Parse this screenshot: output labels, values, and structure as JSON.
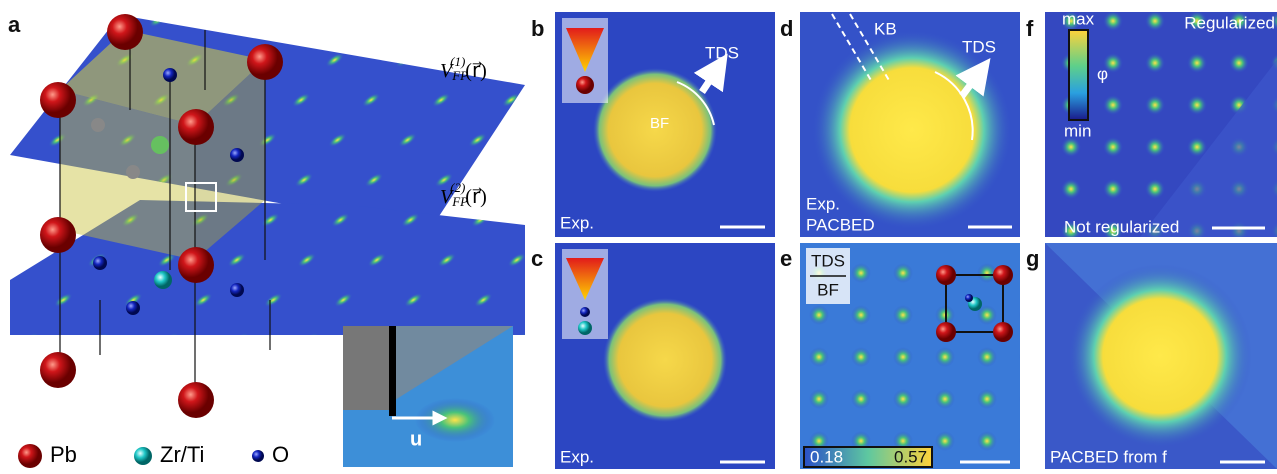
{
  "panels": {
    "a": {
      "label": "a",
      "plane_1": {
        "symbol": "V",
        "subscript": "FP",
        "superscript": "(1)",
        "argument": "(r⃗)"
      },
      "plane_2": {
        "symbol": "V",
        "subscript": "FP",
        "superscript": "(2)",
        "argument": "(r⃗)"
      },
      "inset_vector": "u",
      "legend": [
        "Pb",
        "Zr/Ti",
        "O"
      ]
    },
    "b": {
      "label": "b",
      "arrow_label": "TDS",
      "disc_label": "BF",
      "caption": "Exp."
    },
    "c": {
      "label": "c",
      "caption": "Exp."
    },
    "d": {
      "label": "d",
      "line_label": "KB",
      "arrow_label": "TDS",
      "caption_line_1": "Exp.",
      "caption_line_2": "PACBED"
    },
    "e": {
      "label": "e",
      "fraction_numerator": "TDS",
      "fraction_denominator": "BF",
      "colorbar_min": "0.18",
      "colorbar_max": "0.57"
    },
    "f": {
      "label": "f",
      "colorbar_max": "max",
      "colorbar_min": "min",
      "symbol": "φ",
      "top_label": "Regularized",
      "bottom_label": "Not regularized"
    },
    "g": {
      "label": "g",
      "caption": "PACBED from f"
    }
  }
}
